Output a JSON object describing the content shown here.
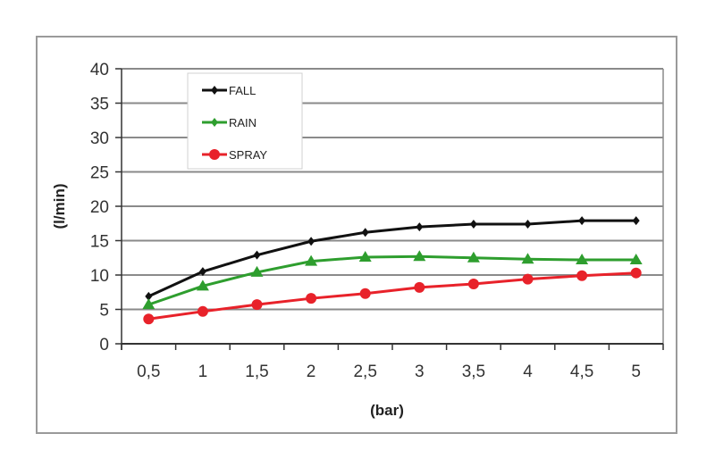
{
  "chart_data": {
    "type": "line",
    "xlabel": "(bar)",
    "ylabel": "(l/min)",
    "categories": [
      "0,5",
      "1",
      "1,5",
      "2",
      "2,5",
      "3",
      "3,5",
      "4",
      "4,5",
      "5"
    ],
    "ylim": [
      0,
      40
    ],
    "yticks": [
      "0",
      "5",
      "10",
      "15",
      "20",
      "25",
      "30",
      "35",
      "40"
    ],
    "grid": true,
    "legend_position": "top-left",
    "series": [
      {
        "name": "FALL",
        "color": "#111111",
        "marker": "diamond",
        "values": [
          6.9,
          10.5,
          12.9,
          14.9,
          16.2,
          17.0,
          17.4,
          17.4,
          17.9,
          17.9
        ]
      },
      {
        "name": "RAIN",
        "color": "#2e9e2e",
        "marker": "triangle",
        "values": [
          5.7,
          8.4,
          10.4,
          12.0,
          12.6,
          12.7,
          12.5,
          12.3,
          12.2,
          12.2
        ]
      },
      {
        "name": "SPRAY",
        "color": "#e8222a",
        "marker": "circle",
        "values": [
          3.6,
          4.7,
          5.7,
          6.6,
          7.3,
          8.2,
          8.7,
          9.4,
          9.9,
          10.3
        ]
      }
    ]
  }
}
